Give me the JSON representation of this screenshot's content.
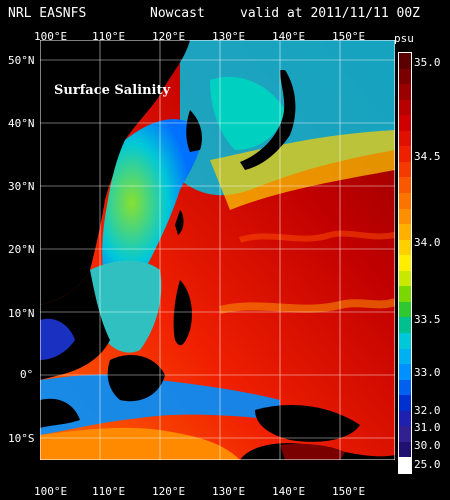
{
  "header": {
    "left": "NRL EASNFS",
    "middle": "Nowcast",
    "right": "valid at 2011/11/11 00Z"
  },
  "map": {
    "title": "Surface Salinity",
    "lon_labels": [
      "100°E",
      "110°E",
      "120°E",
      "130°E",
      "140°E",
      "150°E"
    ],
    "lat_labels": [
      "50°N",
      "40°N",
      "30°N",
      "20°N",
      "10°N",
      "0°",
      "10°S"
    ],
    "lon_range": [
      100,
      158
    ],
    "lat_range": [
      -15,
      53
    ]
  },
  "colorbar": {
    "unit": "psu",
    "labels": [
      "35.0",
      "34.5",
      "34.0",
      "33.5",
      "33.0",
      "32.0",
      "31.0",
      "30.0",
      "25.0"
    ],
    "colors": [
      "#5a0000",
      "#7a0000",
      "#9a0000",
      "#b80000",
      "#d00000",
      "#e01000",
      "#ee2000",
      "#f43a00",
      "#f85800",
      "#fb7400",
      "#fd9000",
      "#ffb000",
      "#ffd000",
      "#ffee00",
      "#c8e800",
      "#7ad800",
      "#30c830",
      "#00c090",
      "#00c8d8",
      "#00b0f0",
      "#0090ff",
      "#0060f0",
      "#0030d0",
      "#2020b0",
      "#302090",
      "#201070",
      "#ffffff"
    ]
  }
}
